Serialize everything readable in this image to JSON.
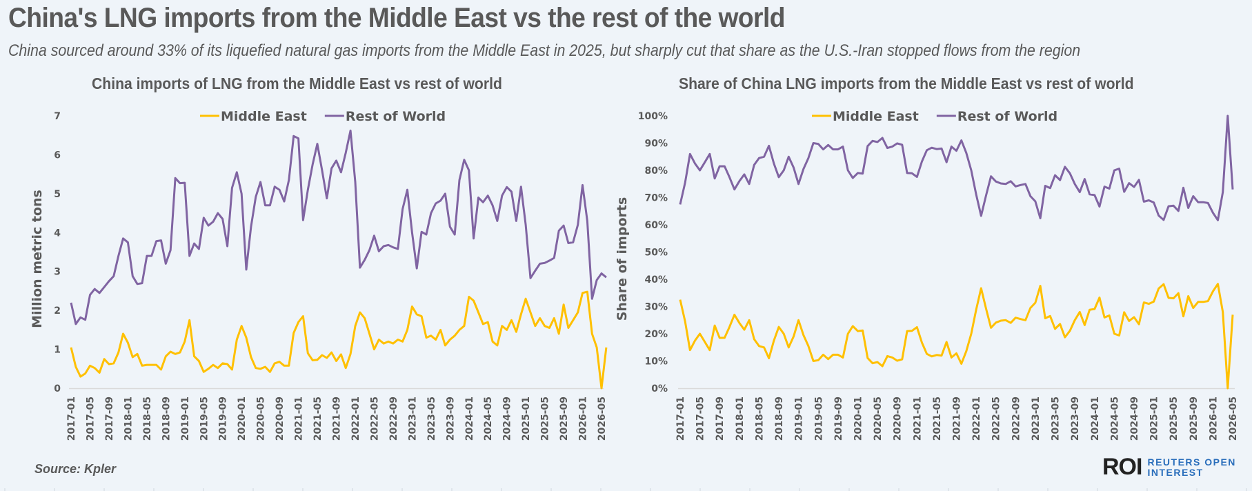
{
  "header": {
    "title": "China's LNG imports from the Middle East vs the rest of the world",
    "subtitle": "China sourced around 33% of its liquefied natural gas imports from the Middle East in 2025, but sharply cut that share as the U.S.-Iran stopped flows from the region"
  },
  "footer": {
    "source": "Source:  Kpler",
    "logo_mark": "ROI",
    "logo_line1": "REUTERS OPEN",
    "logo_line2": "INTEREST"
  },
  "colors": {
    "middle_east": "#ffc000",
    "rest_of_world": "#8064a2",
    "axis": "#d9d9d9",
    "text": "#595959",
    "background": "#eff4f9"
  },
  "chart_data": [
    {
      "type": "line",
      "title": "China imports of LNG from the Middle East vs rest of world",
      "xlabel": "",
      "ylabel": "Million metric tons",
      "ylim": [
        0,
        7
      ],
      "yticks": [
        "0",
        "1",
        "2",
        "3",
        "4",
        "5",
        "6",
        "7"
      ],
      "grid": false,
      "legend": "top-center",
      "x_start": "2017-01",
      "x_end": "2026-05",
      "xtick_labels": [
        "2017-01",
        "2017-05",
        "2017-09",
        "2018-01",
        "2018-05",
        "2018-09",
        "2019-01",
        "2019-05",
        "2019-09",
        "2020-01",
        "2020-05",
        "2020-09",
        "2021-01",
        "2021-05",
        "2021-09",
        "2022-01",
        "2022-05",
        "2022-09",
        "2023-01",
        "2023-05",
        "2023-09",
        "2024-01",
        "2024-05",
        "2024-09",
        "2025-01",
        "2025-05",
        "2025-09",
        "2026-01",
        "2026-05"
      ],
      "series": [
        {
          "name": "Middle East",
          "values": [
            1.05,
            0.55,
            0.3,
            0.38,
            0.58,
            0.52,
            0.4,
            0.75,
            0.62,
            0.64,
            0.92,
            1.4,
            1.17,
            0.8,
            0.88,
            0.58,
            0.6,
            0.6,
            0.6,
            0.48,
            0.82,
            0.94,
            0.88,
            0.92,
            1.2,
            1.75,
            0.82,
            0.7,
            0.42,
            0.5,
            0.6,
            0.52,
            0.64,
            0.62,
            0.48,
            1.25,
            1.6,
            1.3,
            0.8,
            0.52,
            0.5,
            0.55,
            0.42,
            0.64,
            0.68,
            0.58,
            0.58,
            1.42,
            1.7,
            1.85,
            0.9,
            0.72,
            0.73,
            0.85,
            0.78,
            0.92,
            0.7,
            0.87,
            0.52,
            0.88,
            1.6,
            1.95,
            1.8,
            1.4,
            1.0,
            1.25,
            1.15,
            1.2,
            1.15,
            1.25,
            1.2,
            1.5,
            2.1,
            1.9,
            1.85,
            1.3,
            1.35,
            1.25,
            1.5,
            1.1,
            1.25,
            1.35,
            1.5,
            1.6,
            2.35,
            2.25,
            1.95,
            1.65,
            1.7,
            1.2,
            1.1,
            1.6,
            1.5,
            1.75,
            1.45,
            1.9,
            2.3,
            1.95,
            1.6,
            1.8,
            1.6,
            1.55,
            1.8,
            1.4,
            2.15,
            1.55,
            1.75,
            1.95,
            2.45,
            2.48,
            1.4,
            1.05,
            0.0,
            1.05
          ],
          "color": "#ffc000"
        },
        {
          "name": "Rest of World",
          "values": [
            2.2,
            1.65,
            1.82,
            1.76,
            2.4,
            2.55,
            2.45,
            2.6,
            2.75,
            2.88,
            3.4,
            3.85,
            3.75,
            2.88,
            2.68,
            2.7,
            3.4,
            3.4,
            3.78,
            3.8,
            3.2,
            3.55,
            5.4,
            5.27,
            5.28,
            3.4,
            3.72,
            3.58,
            4.38,
            4.18,
            4.28,
            4.5,
            4.35,
            3.65,
            5.15,
            5.55,
            5.0,
            3.05,
            4.15,
            4.92,
            5.3,
            4.7,
            4.7,
            5.18,
            5.1,
            4.8,
            5.35,
            6.48,
            6.42,
            4.32,
            5.1,
            5.75,
            6.28,
            5.6,
            4.88,
            5.65,
            5.85,
            5.55,
            6.05,
            6.62,
            5.3,
            3.1,
            3.3,
            3.55,
            3.92,
            3.52,
            3.65,
            3.68,
            3.62,
            3.58,
            4.6,
            5.1,
            4.0,
            3.08,
            4.02,
            3.95,
            4.5,
            4.75,
            4.82,
            5.0,
            4.15,
            3.95,
            5.35,
            5.87,
            5.6,
            3.85,
            4.9,
            4.78,
            4.95,
            4.7,
            4.3,
            4.95,
            5.17,
            5.05,
            4.3,
            5.18,
            4.2,
            2.83,
            3.02,
            3.2,
            3.22,
            3.28,
            3.35,
            4.05,
            4.18,
            3.73,
            3.75,
            4.2,
            5.22,
            4.3,
            2.3,
            2.78,
            2.95,
            2.85
          ],
          "color": "#8064a2"
        }
      ]
    },
    {
      "type": "line",
      "title": "Share of China LNG imports from the Middle East vs rest of world",
      "xlabel": "",
      "ylabel": "Share of imports",
      "ylim": [
        0,
        100
      ],
      "yticks": [
        "0%",
        "10%",
        "20%",
        "30%",
        "40%",
        "50%",
        "60%",
        "70%",
        "80%",
        "90%",
        "100%"
      ],
      "grid": false,
      "legend": "top-center",
      "x_start": "2017-01",
      "x_end": "2026-05",
      "xtick_labels": [
        "2017-01",
        "2017-05",
        "2017-09",
        "2018-01",
        "2018-05",
        "2018-09",
        "2019-01",
        "2019-05",
        "2019-09",
        "2020-01",
        "2020-05",
        "2020-09",
        "2021-01",
        "2021-05",
        "2021-09",
        "2022-01",
        "2022-05",
        "2022-09",
        "2023-01",
        "2023-05",
        "2023-09",
        "2024-01",
        "2024-05",
        "2024-09",
        "2025-01",
        "2025-05",
        "2025-09",
        "2026-01",
        "2026-05"
      ],
      "series": [
        {
          "name": "Middle East",
          "values": [
            32.5,
            24.5,
            14,
            17.5,
            20,
            17,
            14,
            23,
            18.5,
            18.5,
            22.5,
            27,
            24,
            21.5,
            25,
            18,
            15.5,
            15,
            11,
            17.5,
            22.5,
            20,
            15,
            19,
            25,
            19.5,
            15.5,
            10,
            10.3,
            12.3,
            10.7,
            12.3,
            12.3,
            11.3,
            20,
            22.8,
            21,
            21.2,
            11.1,
            9.2,
            9.6,
            8.1,
            11.8,
            11.3,
            10.1,
            10.6,
            21,
            21.1,
            22.4,
            16.8,
            12.6,
            11.7,
            12.2,
            12,
            17,
            11.3,
            12.8,
            9,
            13.6,
            20,
            28.8,
            36.7,
            29.3,
            22.2,
            24.1,
            24.8,
            25,
            24,
            25.9,
            25.4,
            25,
            29.5,
            31.4,
            37.6,
            25.7,
            26.5,
            21.8,
            23.6,
            18.7,
            21.1,
            25,
            28,
            23.2,
            28.8,
            29.1,
            33.3,
            26,
            26.7,
            20,
            19.4,
            27.9,
            24.7,
            26.1,
            23.5,
            31.5,
            31,
            31.8,
            36.6,
            38.2,
            33.2,
            33,
            34.9,
            26.4,
            33.8,
            29.5,
            31.7,
            31.7,
            32,
            35.6,
            38.3,
            28,
            0,
            27
          ],
          "color": "#ffc000"
        },
        {
          "name": "Rest of World",
          "values": [
            67.5,
            75.5,
            86,
            82.5,
            80,
            83,
            86,
            77,
            81.5,
            81.5,
            77.5,
            73,
            76,
            78.5,
            75,
            82,
            84.5,
            85,
            89,
            82.5,
            77.5,
            80,
            85,
            81,
            75,
            80.5,
            84.5,
            90,
            89.7,
            87.7,
            89.3,
            87.7,
            87.7,
            88.7,
            80,
            77.2,
            79,
            78.8,
            88.9,
            90.8,
            90.4,
            91.9,
            88.2,
            88.7,
            89.9,
            89.4,
            79,
            78.9,
            77.6,
            83.2,
            87.4,
            88.3,
            87.8,
            88,
            83,
            88.7,
            87.2,
            91,
            86.4,
            80,
            71.2,
            63.3,
            70.7,
            77.8,
            75.9,
            75.2,
            75,
            76,
            74.1,
            74.6,
            75,
            70.5,
            68.6,
            62.4,
            74.3,
            73.5,
            78.2,
            76.4,
            81.3,
            78.9,
            75,
            72,
            76.8,
            71.2,
            70.9,
            66.7,
            74,
            73.3,
            80,
            80.6,
            72.1,
            75.3,
            73.9,
            76.5,
            68.5,
            69,
            68.2,
            63.4,
            61.8,
            66.8,
            67,
            65.1,
            73.6,
            66.2,
            70.5,
            68.3,
            68.3,
            68,
            64.4,
            61.7,
            72,
            100,
            73
          ],
          "color": "#8064a2"
        }
      ]
    }
  ]
}
